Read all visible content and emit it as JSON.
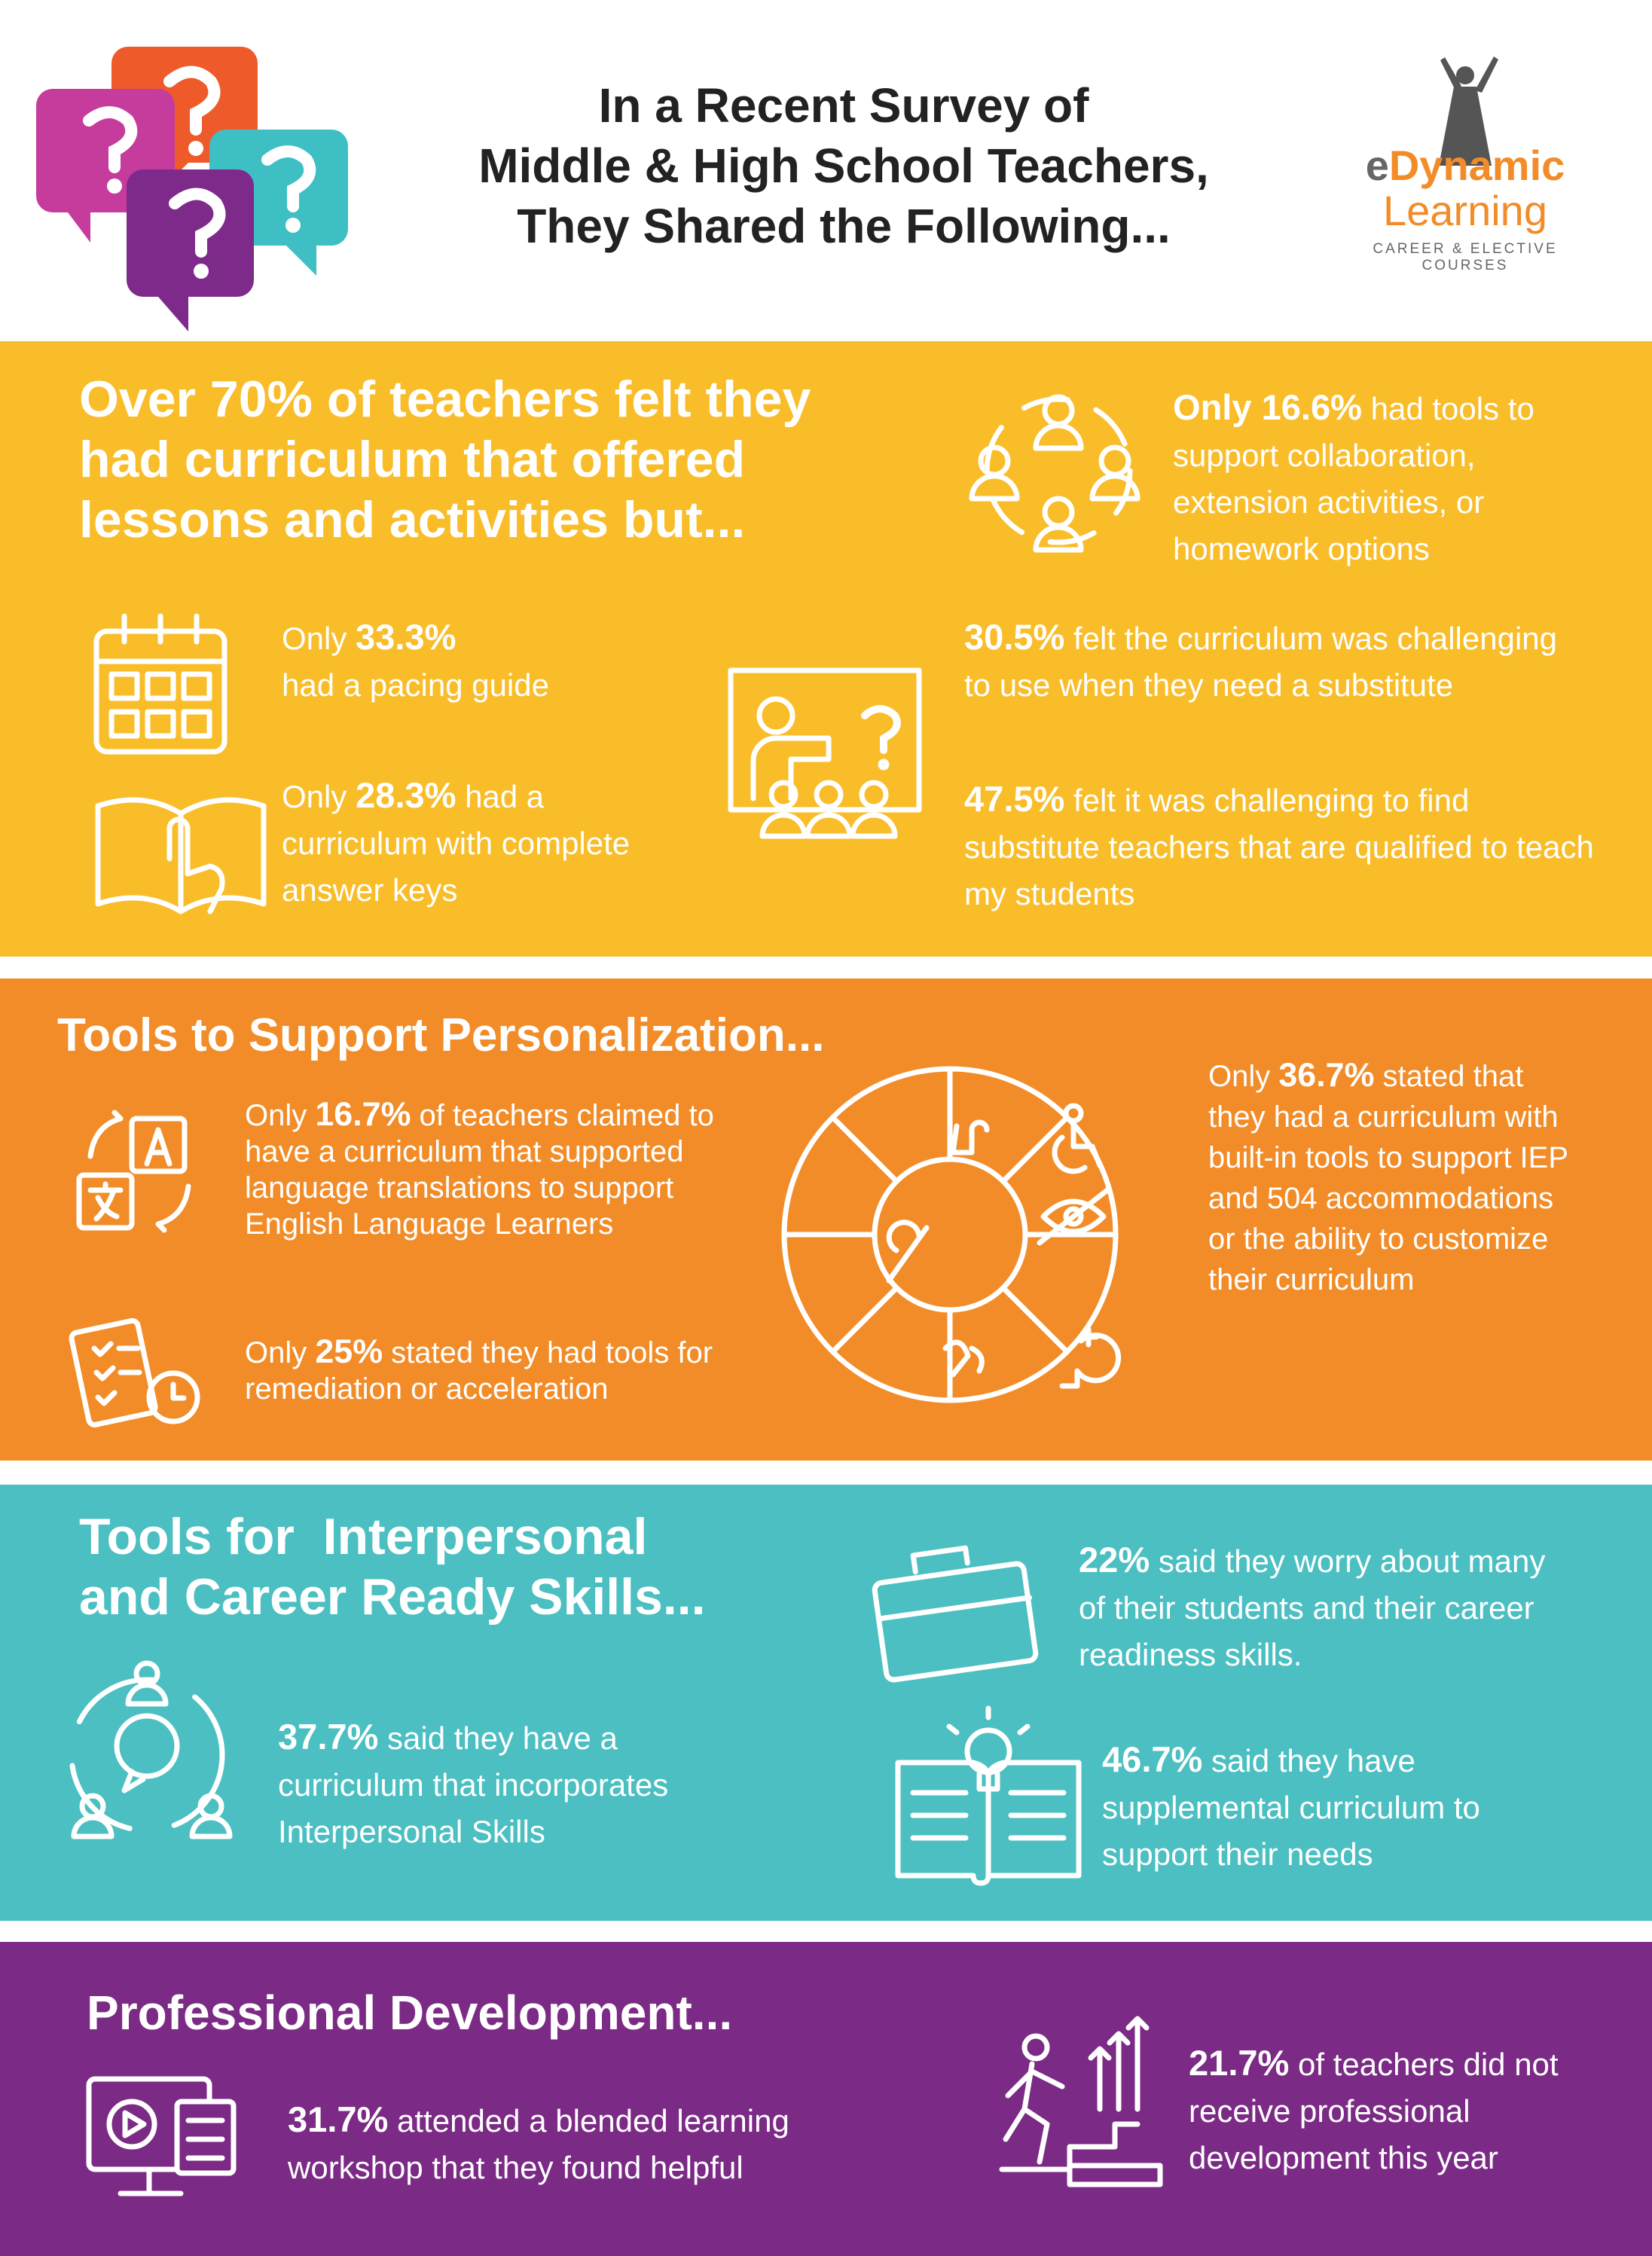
{
  "header": {
    "title_lines": [
      "In a Recent Survey of",
      "Middle & High School Teachers,",
      "They Shared the Following..."
    ],
    "logo": {
      "brand_prefix": "e",
      "brand": "Dynamic",
      "line2": "Learning",
      "tagline1": "CAREER & ELECTIVE",
      "tagline2": "COURSES"
    }
  },
  "sections": [
    {
      "heading_lines": [
        "Over 70% of teachers felt they",
        "had curriculum that offered",
        "lessons and activities but..."
      ],
      "items": [
        {
          "highlight": "Only 16.6%",
          "text": "had tools to support collaboration, extension activities, or homework options"
        },
        {
          "prefix": "Only",
          "highlight": "33.3%",
          "text": "had a pacing guide"
        },
        {
          "prefix": "Only",
          "highlight": "28.3%",
          "text": "had a curriculum with complete answer keys"
        },
        {
          "highlight": "30.5%",
          "text": "felt the curriculum was challenging to use when they need a substitute"
        },
        {
          "highlight": "47.5%",
          "text": "felt it was challenging to find substitute teachers that are qualified to teach my students"
        }
      ]
    },
    {
      "heading_lines": [
        "Tools to Support Personalization..."
      ],
      "items": [
        {
          "prefix": "Only",
          "highlight": "16.7%",
          "text": "of teachers claimed to have a curriculum that supported language translations to support English Language Learners"
        },
        {
          "prefix": "Only",
          "highlight": "25%",
          "text": "stated they had tools for remediation or acceleration"
        },
        {
          "prefix": "Only",
          "highlight": "36.7%",
          "text": "stated that they had a curriculum with built-in tools to support IEP and 504 accommodations or the ability to customize their curriculum"
        }
      ]
    },
    {
      "heading_lines": [
        "Tools for  Interpersonal",
        "and Career Ready Skills..."
      ],
      "items": [
        {
          "highlight": "22%",
          "text": "said they worry about many of their students and their career readiness skills."
        },
        {
          "highlight": "37.7%",
          "text": "said they have  a curriculum that incorporates Interpersonal Skills"
        },
        {
          "highlight": "46.7%",
          "text": "said they have supplemental curriculum to support their needs"
        }
      ]
    },
    {
      "heading_lines": [
        "Professional Development..."
      ],
      "items": [
        {
          "highlight": "31.7%",
          "text": "attended a blended learning workshop that they found helpful"
        },
        {
          "highlight": "21.7%",
          "text": "of teachers did not receive professional development this year"
        }
      ]
    }
  ]
}
